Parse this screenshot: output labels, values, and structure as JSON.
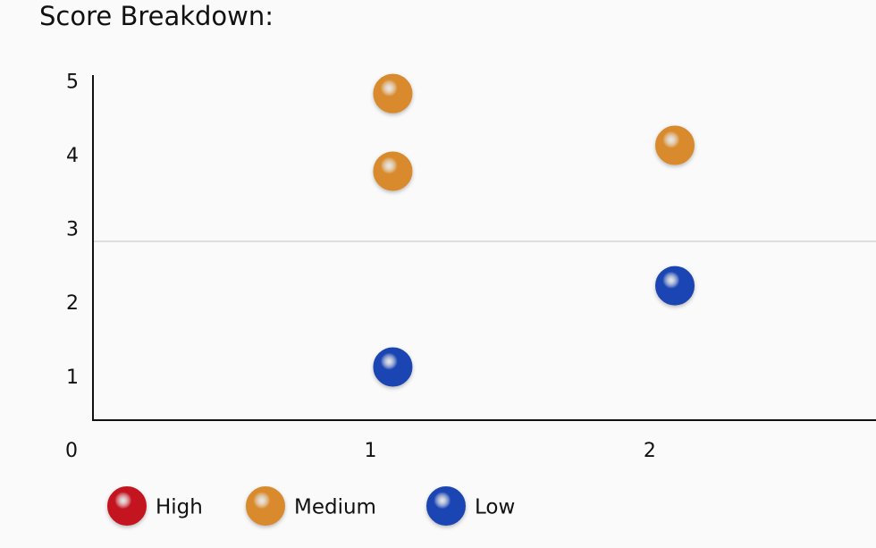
{
  "chart_data": {
    "type": "scatter",
    "title": "Score Breakdown:",
    "xlim": [
      0,
      2.81
    ],
    "xticks": [
      0,
      1,
      2
    ],
    "ylim": [
      0.43,
      5.1
    ],
    "yticks": [
      1,
      2,
      3,
      4,
      5
    ],
    "reference_line": 2.85,
    "series": [
      {
        "name": "High",
        "color": "#c4141f",
        "x": [],
        "values": []
      },
      {
        "name": "Medium",
        "color": "#d98a2c",
        "x": [
          1.08,
          1.08,
          2.09
        ],
        "values": [
          4.85,
          3.8,
          4.15
        ]
      },
      {
        "name": "Low",
        "color": "#1b45b3",
        "x": [
          1.08,
          2.09
        ],
        "values": [
          1.15,
          2.25
        ]
      }
    ]
  }
}
